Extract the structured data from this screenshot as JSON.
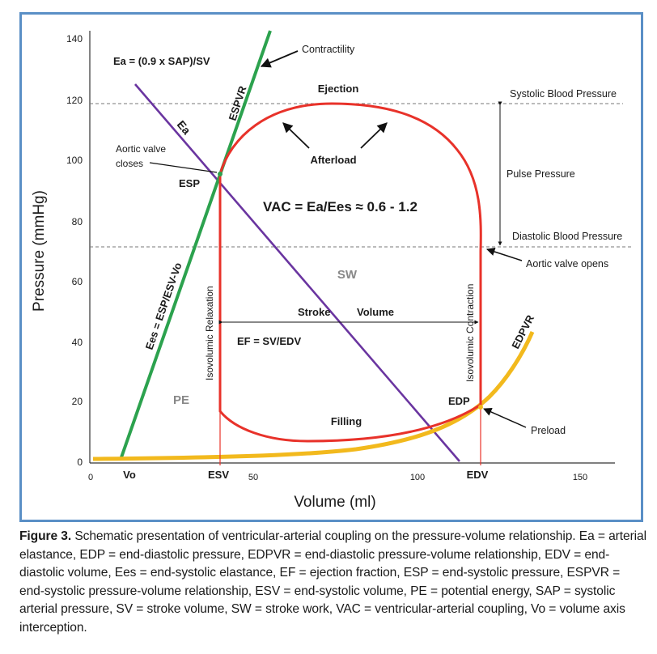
{
  "diagram": {
    "y_axis_label": "Pressure (mmHg)",
    "x_axis_label": "Volume (ml)",
    "y_ticks": [
      "140",
      "120",
      "100",
      "80",
      "60",
      "40",
      "20",
      "0"
    ],
    "x_ticks": [
      "0",
      "50",
      "100",
      "150"
    ],
    "labels": {
      "ea_formula": "Ea = (0.9 x SAP)/SV",
      "contractility": "Contractility",
      "espvr": "ESPVR",
      "ejection": "Ejection",
      "systolic_bp": "Systolic Blood Pressure",
      "ea": "Ea",
      "aortic_closes_1": "Aortic valve",
      "aortic_closes_2": "closes",
      "afterload": "Afterload",
      "pulse_pressure": "Pulse Pressure",
      "esp": "ESP",
      "vac": "VAC = Ea/Ees ≈ 0.6 - 1.2",
      "diastolic_bp": "Diastolic Blood Pressure",
      "aortic_opens": "Aortic valve opens",
      "sw": "SW",
      "ees": "Ees = ESP/ESV-Vo",
      "isovolumic_relaxation": "Isovolumic Relaxation",
      "isovolumic_contraction": "Isovolumic Contraction",
      "stroke": "Stroke",
      "volume": "Volume",
      "edpvr": "EDPVR",
      "ef": "EF = SV/EDV",
      "pe": "PE",
      "edp": "EDP",
      "filling": "Filling",
      "preload": "Preload",
      "vo": "Vo",
      "esv": "ESV",
      "edv": "EDV"
    },
    "colors": {
      "espvr_line": "#2ca24e",
      "ea_line": "#6a35a0",
      "pv_loop": "#e8322a",
      "edpvr_curve": "#f2b91d",
      "frame": "#5a8fc6"
    }
  },
  "caption": {
    "figure_label": "Figure 3.",
    "text": "Schematic presentation of ventricular-arterial coupling on the pressure-volume relationship. Ea = arterial elastance, EDP = end-diastolic pressure, EDPVR = end-diastolic pressure-volume relationship, EDV = end-diastolic volume, Ees = end-systolic elastance, EF = ejection fraction, ESP = end-systolic pressure, ESPVR = end-systolic pressure-volume relationship, ESV = end-systolic volume, PE = potential energy, SAP = systolic arterial pressure, SV = stroke volume, SW = stroke work, VAC = ventricular-arterial coupling, Vo = volume axis interception."
  }
}
